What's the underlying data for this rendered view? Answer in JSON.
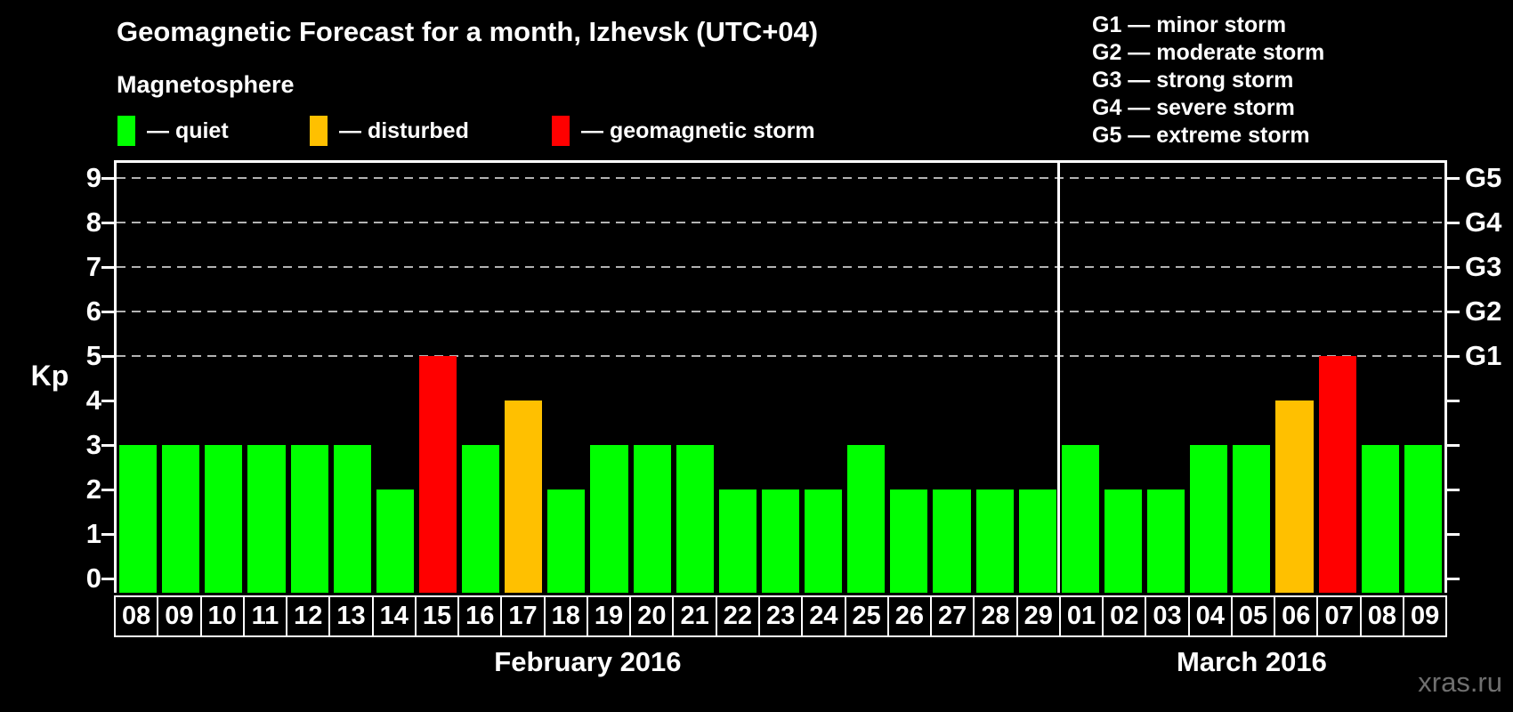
{
  "title": "Geomagnetic Forecast for a month, Izhevsk (UTC+04)",
  "subtitle": "Magnetosphere",
  "legend": [
    {
      "key": "quiet",
      "label": "— quiet",
      "color": "#00ff00"
    },
    {
      "key": "disturbed",
      "label": "— disturbed",
      "color": "#ffc000"
    },
    {
      "key": "storm",
      "label": "— geomagnetic storm",
      "color": "#ff0000"
    }
  ],
  "storm_scale_legend": [
    "G1 — minor storm",
    "G2 — moderate storm",
    "G3 — strong storm",
    "G4 — severe storm",
    "G5 — extreme storm"
  ],
  "watermark": "xras.ru",
  "chart_data": {
    "type": "bar",
    "ylabel": "Kp",
    "ylim": [
      0,
      9
    ],
    "y_ticks": [
      0,
      1,
      2,
      3,
      4,
      5,
      6,
      7,
      8,
      9
    ],
    "gridlines_at_kp": [
      5,
      6,
      7,
      8,
      9
    ],
    "grid": "dashed horizontal at storm levels only",
    "right_axis_labels": [
      {
        "kp": 5,
        "label": "G1"
      },
      {
        "kp": 6,
        "label": "G2"
      },
      {
        "kp": 7,
        "label": "G3"
      },
      {
        "kp": 8,
        "label": "G4"
      },
      {
        "kp": 9,
        "label": "G5"
      }
    ],
    "status_colors": {
      "quiet": "#00ff00",
      "disturbed": "#ffc000",
      "storm": "#ff0000"
    },
    "months": [
      {
        "label": "February 2016",
        "days": 22
      },
      {
        "label": "March 2016",
        "days": 9
      }
    ],
    "categories": [
      "08",
      "09",
      "10",
      "11",
      "12",
      "13",
      "14",
      "15",
      "16",
      "17",
      "18",
      "19",
      "20",
      "21",
      "22",
      "23",
      "24",
      "25",
      "26",
      "27",
      "28",
      "29",
      "01",
      "02",
      "03",
      "04",
      "05",
      "06",
      "07",
      "08",
      "09"
    ],
    "values": [
      3,
      3,
      3,
      3,
      3,
      3,
      2,
      5,
      3,
      4,
      2,
      3,
      3,
      3,
      2,
      2,
      2,
      3,
      2,
      2,
      2,
      2,
      3,
      2,
      2,
      3,
      3,
      4,
      5,
      3,
      3
    ],
    "statuses": [
      "quiet",
      "quiet",
      "quiet",
      "quiet",
      "quiet",
      "quiet",
      "quiet",
      "storm",
      "quiet",
      "disturbed",
      "quiet",
      "quiet",
      "quiet",
      "quiet",
      "quiet",
      "quiet",
      "quiet",
      "quiet",
      "quiet",
      "quiet",
      "quiet",
      "quiet",
      "quiet",
      "quiet",
      "quiet",
      "quiet",
      "quiet",
      "disturbed",
      "storm",
      "quiet",
      "quiet"
    ]
  }
}
